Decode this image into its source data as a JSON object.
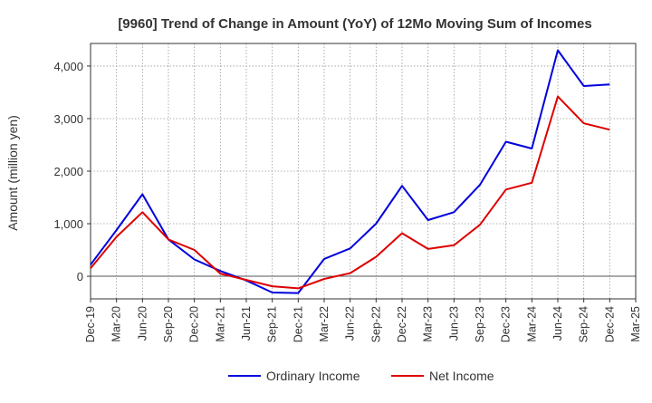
{
  "chart_data": {
    "type": "line",
    "title": "[9960]  Trend of Change in Amount (YoY) of 12Mo Moving Sum of Incomes",
    "ylabel": "Amount (million yen)",
    "xlabel": "",
    "categories": [
      "Dec-19",
      "Mar-20",
      "Jun-20",
      "Sep-20",
      "Dec-20",
      "Mar-21",
      "Jun-21",
      "Sep-21",
      "Dec-21",
      "Mar-22",
      "Jun-22",
      "Sep-22",
      "Dec-22",
      "Mar-23",
      "Jun-23",
      "Sep-23",
      "Dec-23",
      "Mar-24",
      "Jun-24",
      "Sep-24",
      "Dec-24",
      "Mar-25"
    ],
    "yticks": [
      0,
      1000,
      2000,
      3000,
      4000
    ],
    "ytick_labels": [
      "0",
      "1,000",
      "2,000",
      "3,000",
      "4,000"
    ],
    "ylim": [
      -430,
      4430
    ],
    "grid": true,
    "legend_position": "bottom-center",
    "series": [
      {
        "name": "Ordinary Income",
        "color": "#0000dd",
        "values": [
          220,
          880,
          1560,
          700,
          320,
          100,
          -80,
          -310,
          -320,
          330,
          530,
          1000,
          1720,
          1070,
          1220,
          1740,
          2560,
          2430,
          4300,
          3620,
          3650,
          null
        ]
      },
      {
        "name": "Net Income",
        "color": "#dd0000",
        "values": [
          150,
          750,
          1220,
          700,
          500,
          50,
          -70,
          -190,
          -230,
          -50,
          60,
          370,
          820,
          520,
          590,
          980,
          1650,
          1780,
          3420,
          2910,
          2790,
          null
        ]
      }
    ]
  }
}
